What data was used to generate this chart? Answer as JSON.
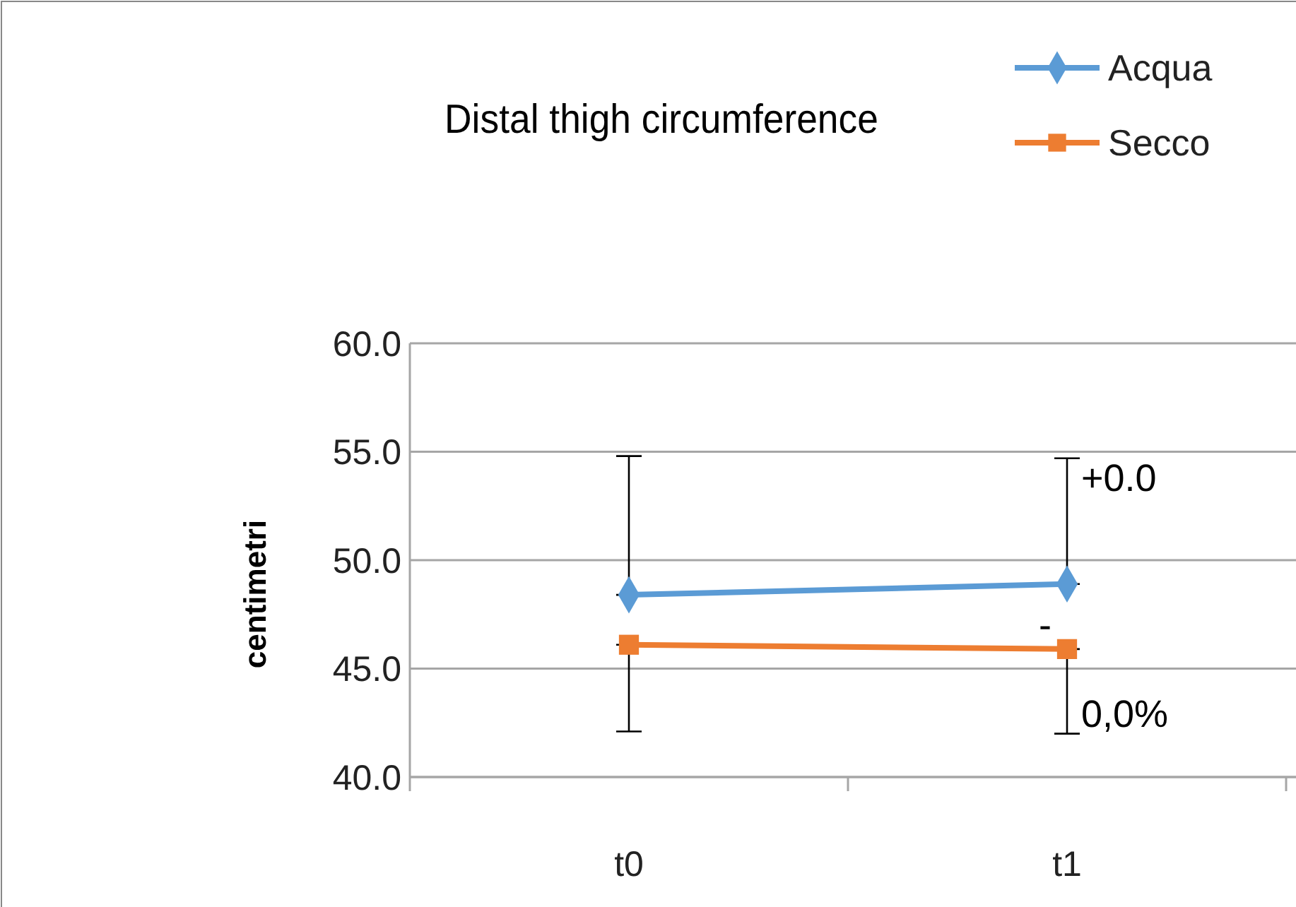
{
  "chart_data": {
    "type": "line",
    "title": "Distal thigh circumference",
    "ylabel": "centimetri",
    "categories": [
      "t0",
      "t1"
    ],
    "series": [
      {
        "name": "Acqua",
        "color": "#5b9bd5",
        "marker": "diamond",
        "values": [
          48.4,
          48.9
        ],
        "errors": [
          [
            48.4,
            54.8
          ],
          [
            48.9,
            54.7
          ]
        ]
      },
      {
        "name": "Secco",
        "color": "#ed7d31",
        "marker": "square",
        "values": [
          46.1,
          45.9
        ],
        "errors": [
          [
            42.1,
            46.1
          ],
          [
            42.0,
            45.9
          ]
        ]
      }
    ],
    "ylim": [
      40,
      60
    ],
    "yticks": [
      {
        "value": 40,
        "label": "40.0"
      },
      {
        "value": 45,
        "label": "45.0"
      },
      {
        "value": 50,
        "label": "50.0"
      },
      {
        "value": 55,
        "label": "55.0"
      },
      {
        "value": 60,
        "label": "60.0"
      }
    ],
    "grid": "y",
    "legend": "top right",
    "annotations": [
      "+0.0",
      "-",
      "0,0%"
    ]
  }
}
